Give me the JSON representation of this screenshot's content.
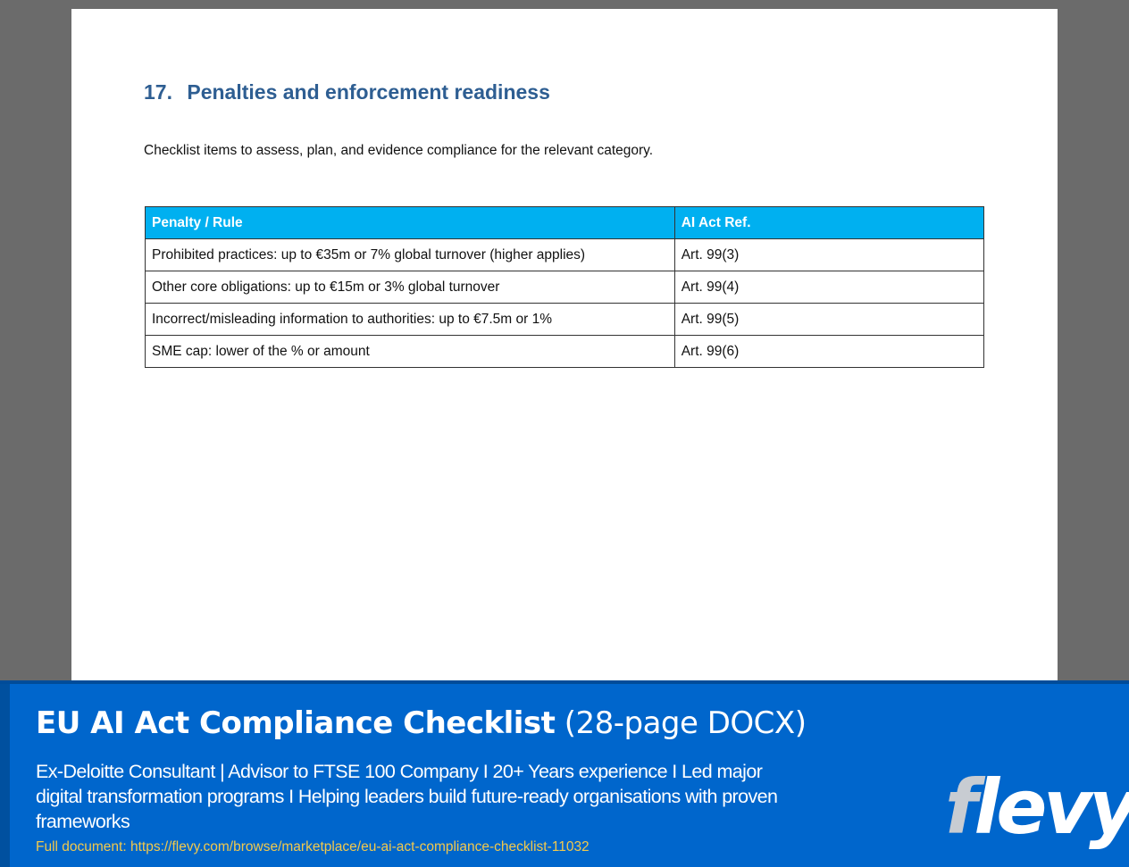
{
  "section": {
    "number": "17.",
    "title": "Penalties and enforcement readiness",
    "intro": "Checklist items to assess, plan, and evidence compliance for the relevant category."
  },
  "table": {
    "headers": [
      "Penalty / Rule",
      "AI Act Ref."
    ],
    "rows": [
      [
        "Prohibited practices: up to €35m or 7% global turnover (higher applies)",
        "Art. 99(3)"
      ],
      [
        "Other core obligations: up to €15m or 3% global turnover",
        "Art. 99(4)"
      ],
      [
        "Incorrect/misleading information to authorities: up to €7.5m or 1%",
        "Art. 99(5)"
      ],
      [
        "SME cap: lower of the % or amount",
        "Art. 99(6)"
      ]
    ],
    "colors": {
      "header_bg": "#00b0f0",
      "header_text": "#ffffff"
    }
  },
  "banner": {
    "title_bold": "EU AI Act Compliance Checklist",
    "title_light": "(28-page DOCX)",
    "description": "Ex-Deloitte Consultant | Advisor to FTSE 100 Company I  20+ Years experience  I  Led major digital transformation programs  I  Helping leaders build future-ready organisations with proven frameworks",
    "link_text": "Full document: https://flevy.com/browse/marketplace/eu-ai-act-compliance-checklist-11032",
    "logo": {
      "part1": "f",
      "part2": "levy"
    },
    "colors": {
      "background": "#0066cc",
      "link": "#f2c94c",
      "heading": "#2e5e92"
    }
  }
}
